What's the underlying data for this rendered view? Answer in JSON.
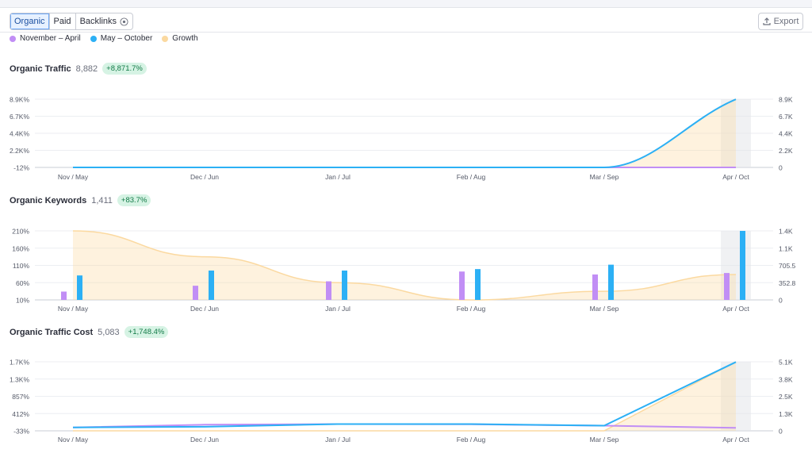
{
  "tabs": [
    {
      "label": "Organic",
      "active": true
    },
    {
      "label": "Paid",
      "active": false
    },
    {
      "label": "Backlinks",
      "active": false,
      "icon": "eye-icon"
    }
  ],
  "export_label": "Export",
  "legend": [
    {
      "label": "November – April",
      "color": "#c18ef5"
    },
    {
      "label": "May – October",
      "color": "#2cb0f5"
    },
    {
      "label": "Growth",
      "color": "#fbd9a0"
    }
  ],
  "x_labels": [
    "Nov / May",
    "Dec / Jun",
    "Jan / Jul",
    "Feb / Aug",
    "Mar / Sep",
    "Apr / Oct"
  ],
  "sections": [
    {
      "title": "Organic Traffic",
      "value": "8,882",
      "growth": "+8,871.7%",
      "left_ticks": [
        "8.9K%",
        "6.7K%",
        "4.4K%",
        "2.2K%",
        "-12%"
      ],
      "right_ticks": [
        "8.9K",
        "6.7K",
        "4.4K",
        "2.2K",
        "0"
      ]
    },
    {
      "title": "Organic Keywords",
      "value": "1,411",
      "growth": "+83.7%",
      "left_ticks": [
        "210%",
        "160%",
        "110%",
        "60%",
        "10%"
      ],
      "right_ticks": [
        "1.4K",
        "1.1K",
        "705.5",
        "352.8",
        "0"
      ]
    },
    {
      "title": "Organic Traffic Cost",
      "value": "5,083",
      "growth": "+1,748.4%",
      "left_ticks": [
        "1.7K%",
        "1.3K%",
        "857%",
        "412%",
        "-33%"
      ],
      "right_ticks": [
        "5.1K",
        "3.8K",
        "2.5K",
        "1.3K",
        "0"
      ]
    }
  ],
  "chart_data": [
    {
      "type": "line",
      "title": "Organic Traffic",
      "categories": [
        "Nov / May",
        "Dec / Jun",
        "Jan / Jul",
        "Feb / Aug",
        "Mar / Sep",
        "Apr / Oct"
      ],
      "series": [
        {
          "name": "November – April",
          "values": [
            0,
            0,
            0,
            0,
            0,
            0
          ]
        },
        {
          "name": "May – October",
          "values": [
            0,
            0,
            0,
            0,
            0,
            8882
          ]
        },
        {
          "name": "Growth",
          "values_pct": [
            -12,
            -12,
            -12,
            -12,
            -12,
            8871.7
          ]
        }
      ],
      "ylim": [
        0,
        8900
      ]
    },
    {
      "type": "bar",
      "title": "Organic Keywords",
      "categories": [
        "Nov / May",
        "Dec / Jun",
        "Jan / Jul",
        "Feb / Aug",
        "Mar / Sep",
        "Apr / Oct"
      ],
      "series": [
        {
          "name": "November – April",
          "values": [
            170,
            290,
            380,
            580,
            520,
            550
          ]
        },
        {
          "name": "May – October",
          "values": [
            500,
            600,
            600,
            630,
            720,
            1411
          ]
        },
        {
          "name": "Growth",
          "values_pct": [
            210,
            135,
            60,
            10,
            35,
            83.7
          ]
        }
      ],
      "ylim": [
        0,
        1411
      ]
    },
    {
      "type": "line",
      "title": "Organic Traffic Cost",
      "categories": [
        "Nov / May",
        "Dec / Jun",
        "Jan / Jul",
        "Feb / Aug",
        "Mar / Sep",
        "Apr / Oct"
      ],
      "series": [
        {
          "name": "November – April",
          "values": [
            250,
            450,
            500,
            480,
            380,
            220
          ]
        },
        {
          "name": "May – October",
          "values": [
            250,
            300,
            500,
            500,
            380,
            5083
          ]
        },
        {
          "name": "Growth",
          "values_pct": [
            -33,
            -33,
            -33,
            -33,
            -33,
            1748.4
          ]
        }
      ],
      "ylim": [
        0,
        5100
      ]
    }
  ]
}
